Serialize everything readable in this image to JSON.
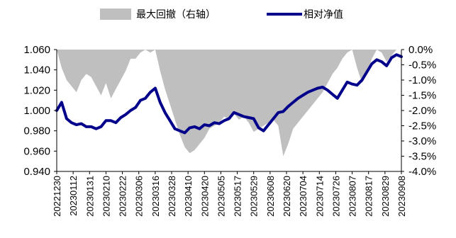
{
  "chart_data": {
    "type": "line",
    "legend": {
      "placement": "top-center"
    },
    "series": [
      {
        "name": "最大回撤（右轴）",
        "type": "area",
        "axis": "right",
        "color": "#bfbfbf",
        "values": [
          0.0,
          -0.6,
          -1.0,
          -1.2,
          -1.4,
          -1.0,
          -0.8,
          -0.9,
          -1.2,
          -1.5,
          -1.1,
          -1.6,
          -1.3,
          -1.0,
          -0.7,
          -0.3,
          -0.3,
          -0.1,
          0.0,
          -0.1,
          0.0,
          -0.7,
          -1.3,
          -1.8,
          -2.3,
          -2.8,
          -3.2,
          -3.4,
          -3.3,
          -3.1,
          -2.9,
          -2.6,
          -2.5,
          -2.4,
          -2.2,
          -2.3,
          -2.1,
          -2.3,
          -2.2,
          -2.4,
          -2.7,
          -2.6,
          -2.5,
          -2.4,
          -2.3,
          -2.5,
          -3.5,
          -3.1,
          -2.6,
          -2.4,
          -2.2,
          -2.0,
          -1.8,
          -1.6,
          -1.4,
          -1.1,
          -0.8,
          -0.6,
          -0.3,
          -0.1,
          0.0,
          -0.6,
          -1.1,
          -0.8,
          -0.3,
          0.0,
          -0.1,
          -0.4,
          -0.2,
          0.0,
          0.0
        ]
      },
      {
        "name": "相对净值",
        "type": "line",
        "axis": "left",
        "color": "#00008b",
        "values": [
          1.0,
          1.008,
          0.992,
          0.988,
          0.986,
          0.987,
          0.984,
          0.984,
          0.982,
          0.984,
          0.99,
          0.99,
          0.988,
          0.993,
          0.996,
          1.0,
          1.003,
          1.01,
          1.012,
          1.018,
          1.022,
          1.008,
          0.998,
          0.99,
          0.982,
          0.98,
          0.978,
          0.983,
          0.984,
          0.982,
          0.986,
          0.985,
          0.988,
          0.987,
          0.99,
          0.992,
          0.998,
          0.996,
          0.994,
          0.993,
          0.992,
          0.983,
          0.98,
          0.986,
          0.992,
          0.998,
          0.999,
          1.004,
          1.008,
          1.012,
          1.015,
          1.018,
          1.02,
          1.022,
          1.023,
          1.02,
          1.016,
          1.012,
          1.02,
          1.028,
          1.026,
          1.025,
          1.03,
          1.038,
          1.046,
          1.05,
          1.048,
          1.044,
          1.052,
          1.055,
          1.053
        ]
      }
    ],
    "x_points": 71,
    "y_left": {
      "min": 0.94,
      "max": 1.06,
      "step": 0.02,
      "ticks": [
        "0.940",
        "0.960",
        "0.980",
        "1.000",
        "1.020",
        "1.040",
        "1.060"
      ]
    },
    "y_right": {
      "min": -4.0,
      "max": 0.0,
      "step": 0.5,
      "ticks": [
        "-4.0%",
        "-3.5%",
        "-3.0%",
        "-2.5%",
        "-2.0%",
        "-1.5%",
        "-1.0%",
        "-0.5%",
        "0.0%"
      ]
    },
    "x_tick_labels": [
      "20221230",
      "20230112",
      "20230131",
      "20230210",
      "20230222",
      "20230306",
      "20230316",
      "20230328",
      "20230410",
      "20230420",
      "20230505",
      "20230517",
      "20230529",
      "20230608",
      "20230620",
      "20230704",
      "20230714",
      "20230726",
      "20230807",
      "20230817",
      "20230829",
      "20230908"
    ],
    "grid": false
  }
}
